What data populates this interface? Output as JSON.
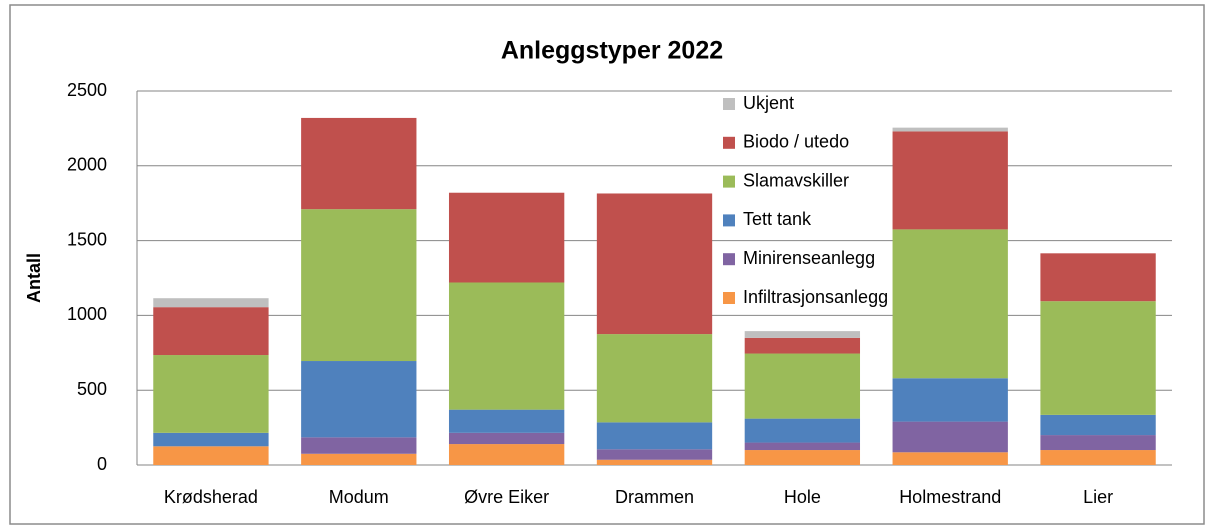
{
  "chart_data": {
    "type": "stacked_bar",
    "title": "Anleggstyper 2022",
    "y_label": "Antall",
    "categories": [
      "Krødsherad",
      "Modum",
      "Øvre Eiker",
      "Drammen",
      "Hole",
      "Holmestrand",
      "Lier"
    ],
    "series": [
      {
        "name": "Infiltrasjonsanlegg",
        "color": "#f79646",
        "values": [
          125,
          75,
          140,
          35,
          100,
          85,
          100
        ]
      },
      {
        "name": "Minirenseanlegg",
        "color": "#8064a2",
        "values": [
          0,
          110,
          75,
          70,
          50,
          205,
          100
        ]
      },
      {
        "name": "Tett tank",
        "color": "#4f81bd",
        "values": [
          90,
          510,
          155,
          180,
          160,
          290,
          135
        ]
      },
      {
        "name": "Slamavskiller",
        "color": "#9bbb59",
        "values": [
          520,
          1015,
          850,
          590,
          435,
          995,
          760
        ]
      },
      {
        "name": "Biodo / utedo",
        "color": "#c0504d",
        "values": [
          320,
          610,
          600,
          940,
          105,
          655,
          320
        ]
      },
      {
        "name": "Ukjent",
        "color": "#bfbfbf",
        "values": [
          60,
          0,
          0,
          0,
          45,
          25,
          0
        ]
      }
    ],
    "ylim": [
      0,
      2500
    ],
    "yticks": [
      0,
      500,
      1000,
      1500,
      2000,
      2500
    ],
    "grid": true
  }
}
